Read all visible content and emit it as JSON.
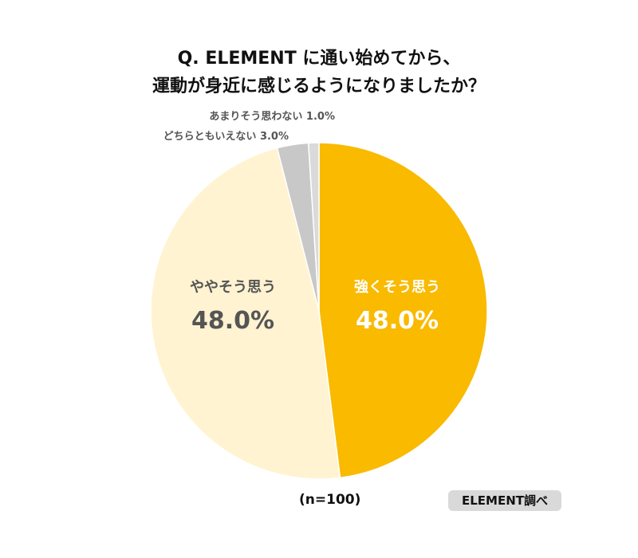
{
  "title_line1": "Q. ELEMENT に通い始めてから、",
  "title_line2": "運動が身近に感じるようになりましたか？",
  "chart_data": {
    "type": "pie",
    "categories": [
      "強くそう思う",
      "ややそう思う",
      "どちらともいえない",
      "あまりそう思わない"
    ],
    "values": [
      48.0,
      48.0,
      3.0,
      1.0
    ],
    "value_labels": [
      "48.0%",
      "48.0%",
      "3.0%",
      "1.0%"
    ],
    "colors": [
      "#F9BA00",
      "#FFF3D1",
      "#C8C8C8",
      "#DADADA"
    ],
    "start_angle": "12 o'clock",
    "direction": "clockwise"
  },
  "sample_size": "(n=100)",
  "source": "ELEMENT調べ"
}
